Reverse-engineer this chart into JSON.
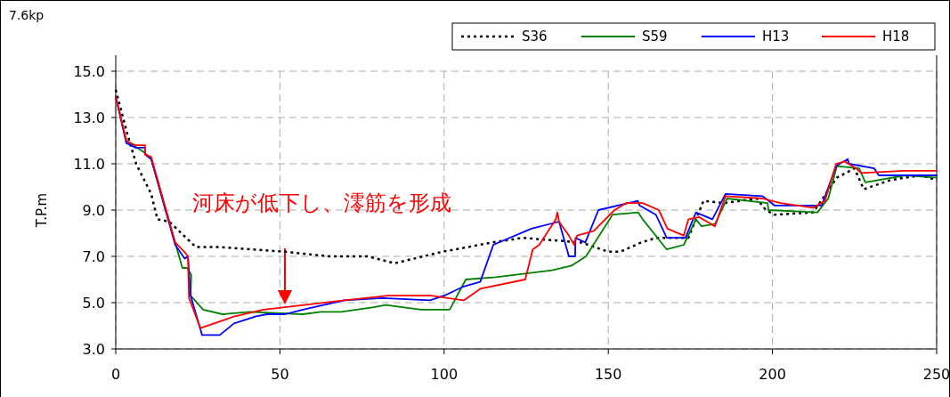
{
  "chart_data": {
    "type": "line",
    "ylabel": "T.P.m",
    "xlim": [
      0,
      250
    ],
    "xticks": [
      0,
      50,
      100,
      150,
      200,
      250
    ],
    "ylim": [
      3,
      15
    ],
    "yticks": [
      {
        "value": 3,
        "label": "3.0"
      },
      {
        "value": 5,
        "label": "5.0"
      },
      {
        "value": 7,
        "label": "7.0"
      },
      {
        "value": 9,
        "label": "9.0"
      },
      {
        "value": 11,
        "label": "11.0"
      },
      {
        "value": 13,
        "label": "13.0"
      },
      {
        "value": 15,
        "label": "15.0"
      }
    ],
    "grid": true,
    "legend": "top right",
    "annotations": [
      "7.6kp",
      "河床が低下し、澪筋を形成"
    ],
    "series": [
      {
        "name": "S36",
        "color": "#000000",
        "line_style": "dotted",
        "x": [
          0,
          3.5,
          6.2,
          10.8,
          12.7,
          16.3,
          24.4,
          31.7,
          51.5,
          65,
          76.7,
          84.9,
          99.5,
          114.7,
          123.9,
          141.8,
          150,
          153.7,
          160,
          164.6,
          174.4,
          179,
          185.2,
          195.2,
          198,
          200.6,
          212.4,
          219.6,
          225,
          227.8,
          236,
          245,
          250
        ],
        "values": [
          14.2,
          12.3,
          11.0,
          9.7,
          8.6,
          8.5,
          7.4,
          7.4,
          7.2,
          7.0,
          7.0,
          6.7,
          7.2,
          7.6,
          7.8,
          7.6,
          7.2,
          7.2,
          7.6,
          7.8,
          7.8,
          9.4,
          9.3,
          9.5,
          9.0,
          8.8,
          8.9,
          10.4,
          10.8,
          9.9,
          10.3,
          10.5,
          10.3
        ]
      },
      {
        "name": "S59",
        "color": "#008000",
        "line_style": "solid",
        "x": [
          0,
          3.2,
          8.6,
          10.8,
          20.3,
          21.7,
          23,
          22.8,
          26.6,
          32.5,
          40.7,
          57,
          62.4,
          68.6,
          78.6,
          82.2,
          93,
          101.7,
          106.6,
          115.8,
          132.9,
          138.8,
          143.2,
          151.3,
          159.1,
          160.5,
          167.8,
          173,
          176.7,
          178.4,
          182.5,
          186.2,
          198.5,
          198.8,
          213.7,
          217,
          219.6,
          226.4,
          228.3,
          240.5,
          250
        ],
        "values": [
          13.9,
          12.0,
          11.5,
          11.2,
          6.5,
          6.5,
          6.2,
          5.3,
          4.7,
          4.5,
          4.6,
          4.5,
          4.6,
          4.6,
          4.8,
          4.9,
          4.7,
          4.7,
          6.0,
          6.1,
          6.4,
          6.6,
          7.0,
          8.8,
          8.9,
          8.6,
          7.3,
          7.5,
          8.6,
          8.3,
          8.4,
          9.5,
          9.3,
          9.0,
          8.9,
          9.5,
          10.9,
          10.8,
          10.2,
          10.5,
          10.4
        ]
      },
      {
        "name": "H13",
        "color": "#0000ff",
        "line_style": "solid",
        "x": [
          0,
          3.2,
          5.9,
          8.9,
          8.9,
          10.8,
          18.1,
          21,
          22,
          22.8,
          26.3,
          31.7,
          36,
          42.5,
          46,
          51.5,
          57,
          69.6,
          81.3,
          95.7,
          100,
          106,
          111,
          115,
          126.6,
          135,
          138,
          139.9,
          140,
          143,
          147,
          159,
          159.5,
          164.5,
          167.8,
          173.5,
          176.7,
          181.7,
          185.7,
          197,
          200.6,
          215,
          219.4,
          222.9,
          223.3,
          231,
          232.4,
          250
        ],
        "values": [
          13.9,
          11.9,
          11.7,
          11.7,
          11.4,
          11.2,
          7.5,
          6.9,
          7.0,
          5.3,
          3.6,
          3.6,
          4.1,
          4.4,
          4.5,
          4.5,
          4.7,
          5.1,
          5.2,
          5.1,
          5.3,
          5.7,
          5.9,
          7.5,
          8.2,
          8.5,
          7.0,
          7.0,
          7.8,
          7.6,
          9.0,
          9.4,
          9.2,
          8.8,
          7.8,
          7.8,
          8.9,
          8.6,
          9.7,
          9.6,
          9.2,
          9.2,
          10.9,
          11.2,
          11.0,
          10.8,
          10.5,
          10.5
        ]
      },
      {
        "name": "H18",
        "color": "#ff0000",
        "line_style": "solid",
        "x": [
          0,
          3.2,
          5.9,
          8.9,
          8.9,
          10.8,
          18.1,
          20.9,
          22,
          22.3,
          25.8,
          36,
          45,
          51.5,
          69.6,
          83,
          96,
          106,
          111,
          124.7,
          127,
          129,
          134,
          134.5,
          135,
          138,
          139.6,
          140.5,
          145.6,
          151.9,
          155.4,
          160.5,
          165.4,
          168,
          173,
          174.4,
          177.6,
          182.5,
          185.7,
          197,
          202.5,
          212.4,
          216,
          219.4,
          222,
          225.5,
          227,
          240,
          250
        ],
        "values": [
          13.9,
          12.0,
          11.8,
          11.8,
          11.4,
          11.3,
          7.6,
          7.2,
          7.0,
          5.2,
          3.9,
          4.4,
          4.7,
          4.8,
          5.1,
          5.3,
          5.3,
          5.1,
          5.6,
          6.0,
          7.3,
          7.5,
          8.6,
          8.9,
          8.5,
          7.9,
          7.5,
          7.9,
          8.1,
          9.0,
          9.3,
          9.3,
          9.0,
          8.2,
          7.9,
          8.6,
          8.7,
          8.3,
          9.6,
          9.5,
          9.3,
          9.1,
          9.4,
          11.0,
          11.1,
          10.8,
          10.6,
          10.7,
          10.7
        ]
      }
    ]
  }
}
